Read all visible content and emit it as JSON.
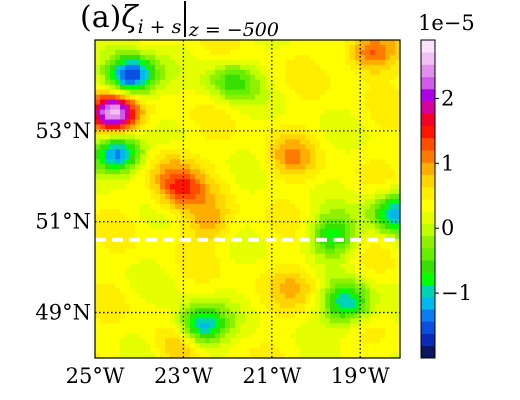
{
  "panel": {
    "label": "(a)",
    "symbol": "ζ",
    "subscript": "i + s",
    "condition": "z = −500"
  },
  "colorbar": {
    "exponent_label": "1e−5",
    "ticks": [
      {
        "value": 2,
        "label": "2"
      },
      {
        "value": 1,
        "label": "1"
      },
      {
        "value": 0,
        "label": "0"
      },
      {
        "value": -1,
        "label": "−1"
      }
    ],
    "range": [
      -2.0,
      2.9
    ],
    "colors": [
      "#0a1660",
      "#0a2bb8",
      "#0a4fe0",
      "#0b7cf2",
      "#00b7ee",
      "#00d4b5",
      "#00ff00",
      "#38e000",
      "#66ef00",
      "#90f000",
      "#c0ff00",
      "#e6ff00",
      "#ffff00",
      "#ffee00",
      "#ffd500",
      "#ffae00",
      "#ff7a00",
      "#ff4e00",
      "#ff1400",
      "#f0002a",
      "#d8009a",
      "#b000e8",
      "#cf5ce8",
      "#e38fee",
      "#f1c0f4",
      "#fbe2fb"
    ]
  },
  "chart_data": {
    "type": "heatmap",
    "title": "(a) ζ_{i+s} | z = −500",
    "x_ticks": [
      {
        "value": -25,
        "label": "25°W"
      },
      {
        "value": -23,
        "label": "23°W"
      },
      {
        "value": -21,
        "label": "21°W"
      },
      {
        "value": -19,
        "label": "19°W"
      }
    ],
    "y_ticks": [
      {
        "value": 53,
        "label": "53°N"
      },
      {
        "value": 51,
        "label": "51°N"
      },
      {
        "value": 49,
        "label": "49°N"
      }
    ],
    "xlim": [
      -25,
      -18.1
    ],
    "ylim": [
      48.0,
      55.0
    ],
    "grid": true,
    "section_line_lat": 50.6,
    "value_range": [
      -2.0,
      2.9
    ],
    "features": [
      {
        "lon": -24.2,
        "lat": 54.2,
        "value": -1.9,
        "note": "cyan/blue eddy"
      },
      {
        "lon": -24.6,
        "lat": 53.4,
        "value": 2.8,
        "note": "magenta filament"
      },
      {
        "lon": -24.5,
        "lat": 52.5,
        "value": -1.6,
        "note": "blue spot"
      },
      {
        "lon": -23.1,
        "lat": 51.7,
        "value": 1.4,
        "note": "red spot"
      },
      {
        "lon": -23.3,
        "lat": 52.3,
        "value": 0.8
      },
      {
        "lon": -20.6,
        "lat": 52.4,
        "value": 0.9
      },
      {
        "lon": -21.9,
        "lat": 54.1,
        "value": -0.6
      },
      {
        "lon": -18.8,
        "lat": 54.7,
        "value": 1.3
      },
      {
        "lon": -18.2,
        "lat": 51.2,
        "value": -1.2
      },
      {
        "lon": -22.6,
        "lat": 48.7,
        "value": -1.3
      },
      {
        "lon": -23.1,
        "lat": 48.3,
        "value": 0.9
      },
      {
        "lon": -20.4,
        "lat": 49.6,
        "value": 0.8
      },
      {
        "lon": -22.4,
        "lat": 51.0,
        "value": 0.9
      },
      {
        "lon": -19.6,
        "lat": 50.7,
        "value": -0.8
      },
      {
        "lon": -19.3,
        "lat": 49.2,
        "value": -1.1
      }
    ]
  }
}
